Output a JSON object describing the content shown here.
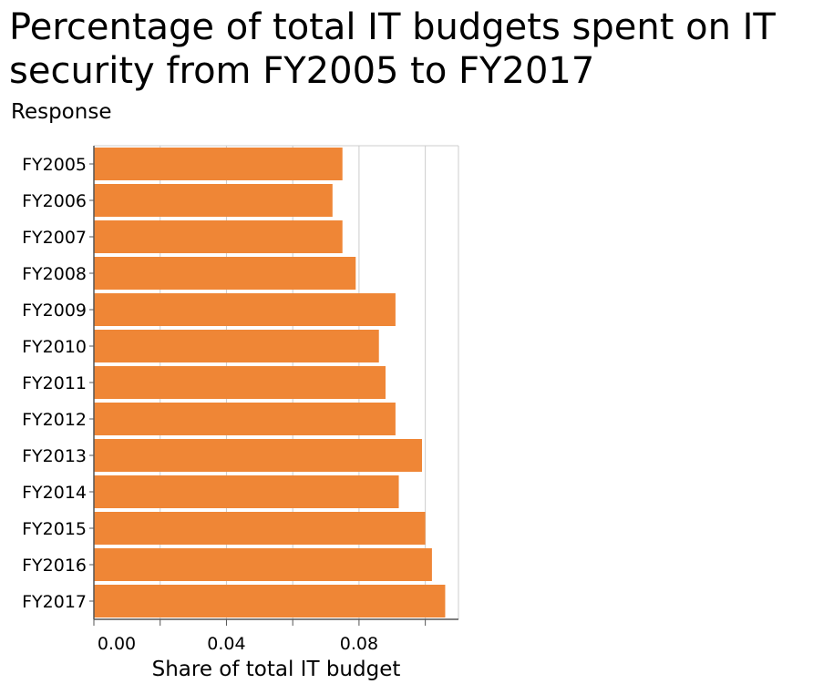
{
  "chart_data": {
    "type": "bar",
    "orientation": "horizontal",
    "title": "Percentage of total IT budgets spent on IT security from FY2005 to FY2017",
    "ylabel": "Response",
    "xlabel": "Share of total IT budget",
    "categories": [
      "FY2005",
      "FY2006",
      "FY2007",
      "FY2008",
      "FY2009",
      "FY2010",
      "FY2011",
      "FY2012",
      "FY2013",
      "FY2014",
      "FY2015",
      "FY2016",
      "FY2017"
    ],
    "values": [
      0.075,
      0.072,
      0.075,
      0.079,
      0.091,
      0.086,
      0.088,
      0.091,
      0.099,
      0.092,
      0.1,
      0.102,
      0.106
    ],
    "xlim": [
      0,
      0.11
    ],
    "xticks": [
      0.0,
      0.04,
      0.08
    ],
    "xtick_labels": [
      "0.00",
      "0.04",
      "0.08"
    ],
    "gridlines": [
      0.02,
      0.04,
      0.06,
      0.08,
      0.1
    ],
    "grid": true,
    "bar_color": "#ef8636",
    "grid_color": "#cccccc"
  }
}
